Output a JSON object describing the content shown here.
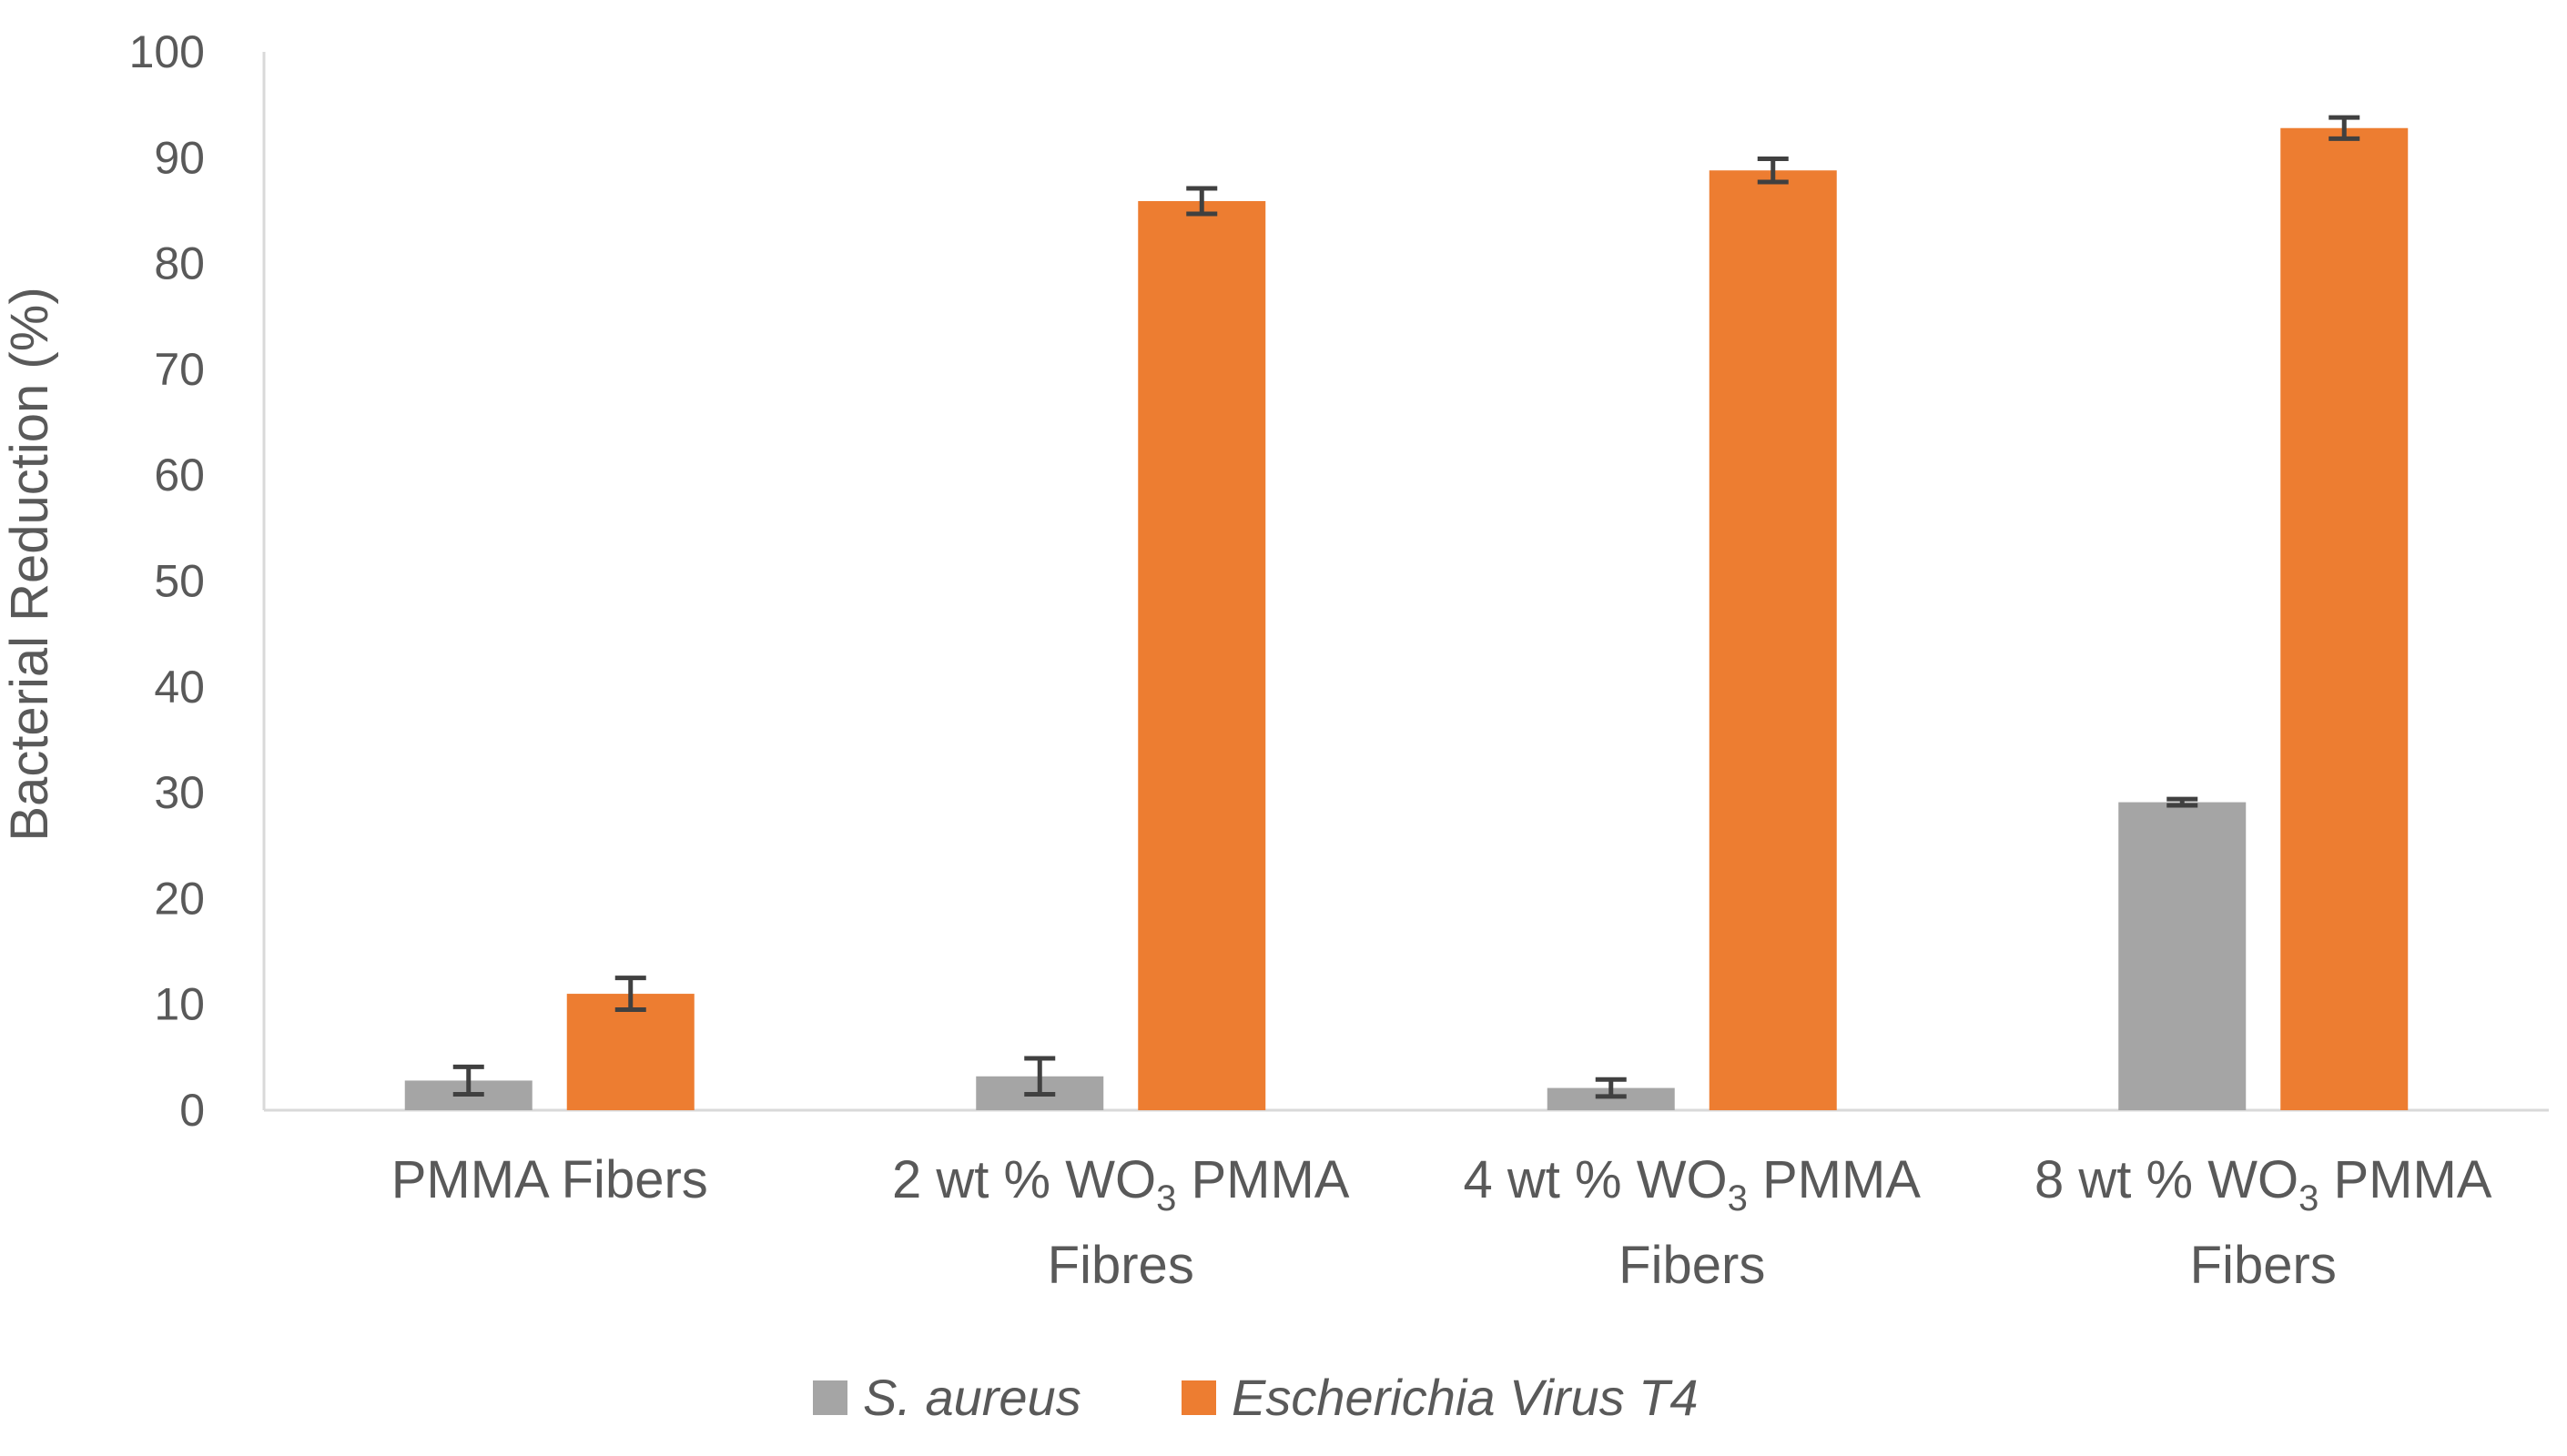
{
  "chart_data": {
    "type": "bar",
    "ylabel": "Bacterial Reduction (%)",
    "ylim": [
      0,
      100
    ],
    "yticks": [
      0,
      10,
      20,
      30,
      40,
      50,
      60,
      70,
      80,
      90,
      100
    ],
    "grid": false,
    "legend_position": "bottom",
    "categories": [
      {
        "lines": [
          {
            "pre": "PMMA Fibers",
            "sub": "",
            "post": ""
          }
        ]
      },
      {
        "lines": [
          {
            "pre": "2 wt % WO",
            "sub": "3",
            "post": " PMMA"
          },
          {
            "pre": "Fibres",
            "sub": "",
            "post": ""
          }
        ]
      },
      {
        "lines": [
          {
            "pre": "4 wt % WO",
            "sub": "3",
            "post": " PMMA"
          },
          {
            "pre": "Fibers",
            "sub": "",
            "post": ""
          }
        ]
      },
      {
        "lines": [
          {
            "pre": "8 wt % WO",
            "sub": "3",
            "post": " PMMA"
          },
          {
            "pre": "Fibers",
            "sub": "",
            "post": ""
          }
        ]
      }
    ],
    "series": [
      {
        "name": "S. aureus",
        "color": "#a5a5a5",
        "values": [
          2.8,
          3.2,
          2.1,
          29.1
        ],
        "errors": [
          1.3,
          1.7,
          0.8,
          0.3
        ]
      },
      {
        "name": "Escherichia Virus T4",
        "color": "#ed7d31",
        "values": [
          11.0,
          85.9,
          88.8,
          92.8
        ],
        "errors": [
          1.5,
          1.2,
          1.1,
          1.0
        ]
      }
    ],
    "error_bar_color": "#404040",
    "axis_color": "#d9d9d9"
  }
}
